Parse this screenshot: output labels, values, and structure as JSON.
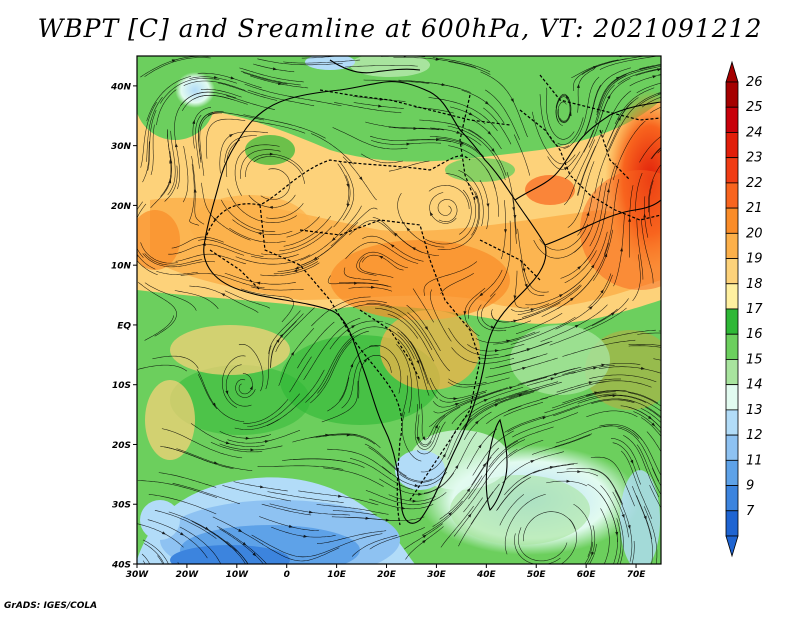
{
  "title": "WBPT [C] and Sreamline at 600hPa, VT: 2021091212",
  "credit": "GrADS: IGES/COLA",
  "map": {
    "lon_range": [
      -30,
      75
    ],
    "lat_range": [
      -40,
      45
    ],
    "lat_labels": [
      {
        "value": 40,
        "label": "40N"
      },
      {
        "value": 30,
        "label": "30N"
      },
      {
        "value": 20,
        "label": "20N"
      },
      {
        "value": 10,
        "label": "10N"
      },
      {
        "value": 0,
        "label": "EQ"
      },
      {
        "value": -10,
        "label": "10S"
      },
      {
        "value": -20,
        "label": "20S"
      },
      {
        "value": -30,
        "label": "30S"
      },
      {
        "value": -40,
        "label": "40S"
      }
    ],
    "lon_labels": [
      {
        "value": -30,
        "label": "30W"
      },
      {
        "value": -20,
        "label": "20W"
      },
      {
        "value": -10,
        "label": "10W"
      },
      {
        "value": 0,
        "label": "0"
      },
      {
        "value": 10,
        "label": "10E"
      },
      {
        "value": 20,
        "label": "20E"
      },
      {
        "value": 30,
        "label": "30E"
      },
      {
        "value": 40,
        "label": "40E"
      },
      {
        "value": 50,
        "label": "50E"
      },
      {
        "value": 60,
        "label": "60E"
      },
      {
        "value": 70,
        "label": "70E"
      }
    ]
  },
  "colorbar": {
    "levels": [
      {
        "label": "26",
        "color": "#a50000"
      },
      {
        "label": "25",
        "color": "#c8000a"
      },
      {
        "label": "24",
        "color": "#e11e0a"
      },
      {
        "label": "23",
        "color": "#f03c14"
      },
      {
        "label": "22",
        "color": "#f8641e"
      },
      {
        "label": "21",
        "color": "#fa8c28"
      },
      {
        "label": "20",
        "color": "#fcb04a"
      },
      {
        "label": "19",
        "color": "#fdd27a"
      },
      {
        "label": "18",
        "color": "#fff0a0"
      },
      {
        "label": "17",
        "color": "#2eb836"
      },
      {
        "label": "16",
        "color": "#6ccf5e"
      },
      {
        "label": "15",
        "color": "#a8e49e"
      },
      {
        "label": "14",
        "color": "#e2fbf0"
      },
      {
        "label": "13",
        "color": "#b2dcf8"
      },
      {
        "label": "12",
        "color": "#8ec2f2"
      },
      {
        "label": "11",
        "color": "#5ea2e8"
      },
      {
        "label": "9",
        "color": "#3c84de"
      },
      {
        "label": "7",
        "color": "#1e64d2"
      }
    ],
    "top_color": "#a50000",
    "bottom_color": "#1e64d2"
  }
}
